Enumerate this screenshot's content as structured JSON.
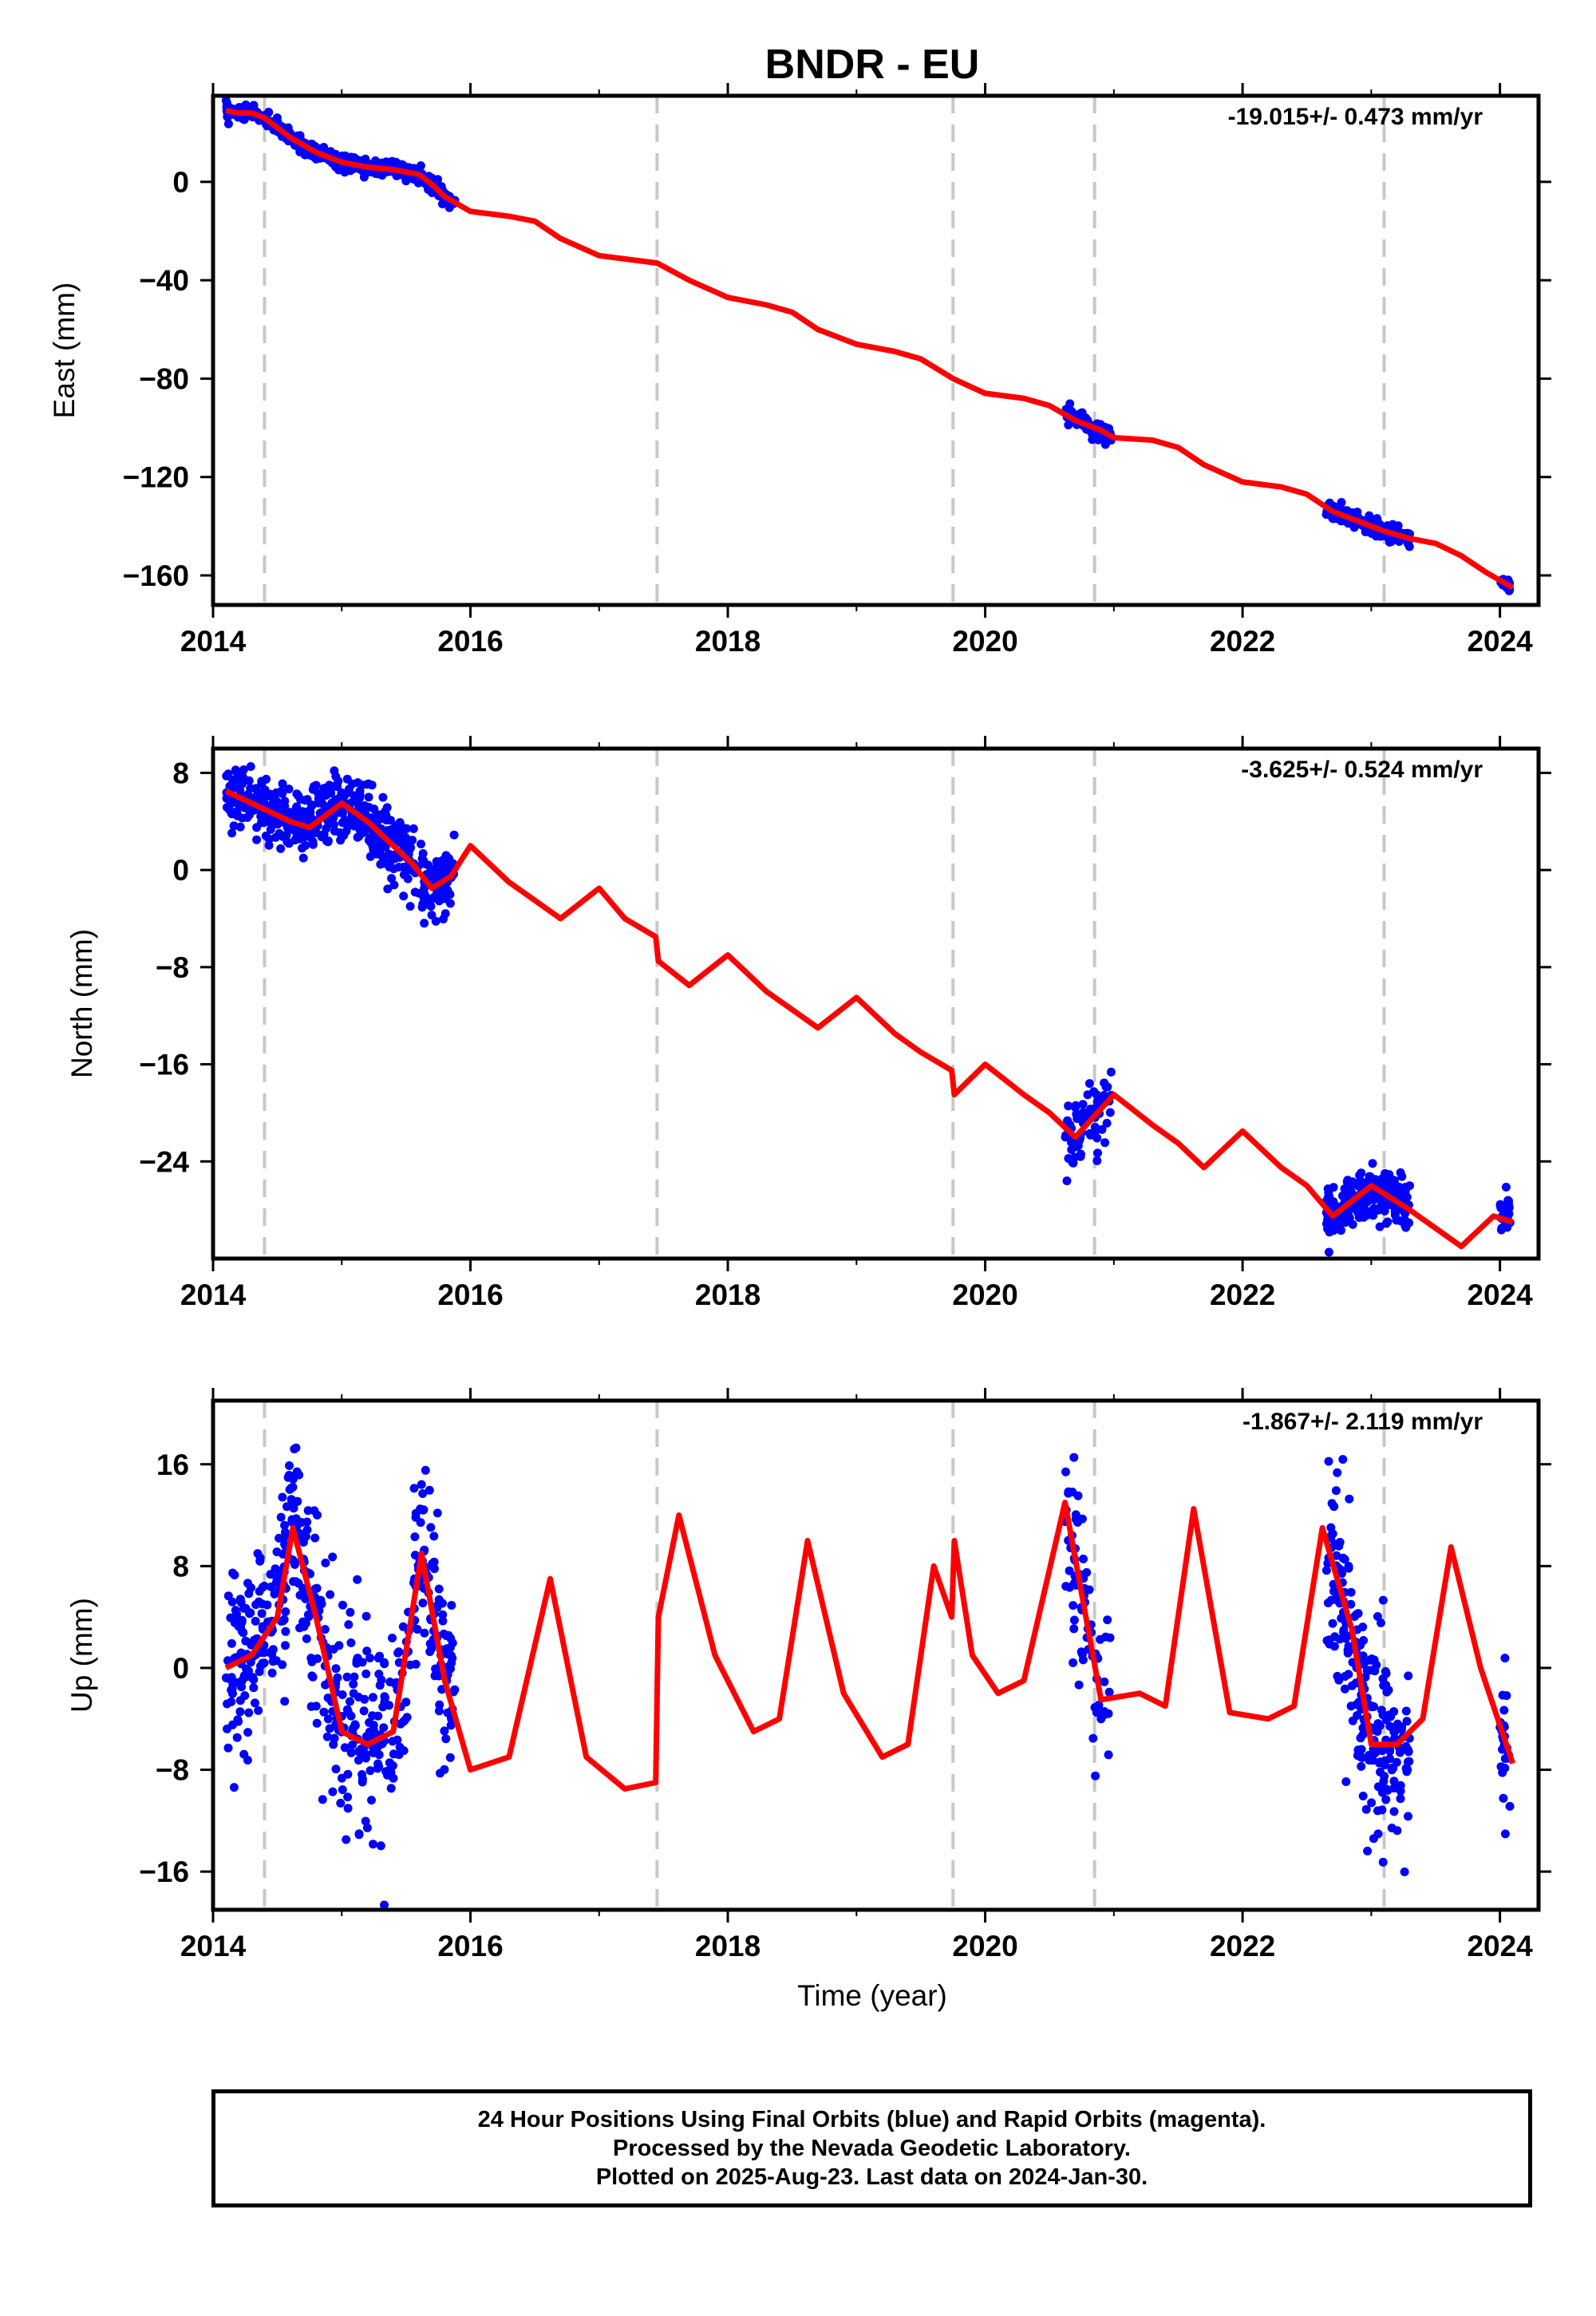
{
  "figure": {
    "title": "BNDR - EU",
    "xlabel": "Time (year)",
    "footer": [
      "24 Hour Positions Using Final Orbits (blue) and Rapid Orbits (magenta).",
      "Processed by the Nevada Geodetic Laboratory.",
      "Plotted on 2025-Aug-23. Last data on 2024-Jan-30."
    ],
    "colors": {
      "data": "#0000ff",
      "model": "#ff0000",
      "steps": "#c8c8c8",
      "frame": "#000000"
    }
  },
  "chart_data": [
    {
      "type": "scatter",
      "ylabel": "East (mm)",
      "rate": "-19.015+/- 0.473 mm/yr",
      "xlim": [
        2014.0,
        2024.3
      ],
      "ylim": [
        -172,
        35
      ],
      "xticks": [
        2014,
        2016,
        2018,
        2020,
        2022,
        2024
      ],
      "yticks": [
        0,
        -40,
        -80,
        -120,
        -160
      ],
      "step_lines": [
        2014.4,
        2017.45,
        2019.75,
        2020.85,
        2023.1
      ],
      "model": {
        "x": [
          2014.1,
          2014.2,
          2014.3,
          2014.4,
          2014.5,
          2014.6,
          2014.7,
          2014.8,
          2014.9,
          2015.0,
          2015.2,
          2015.4,
          2015.6,
          2015.7,
          2015.8,
          2016.0,
          2016.3,
          2016.5,
          2016.7,
          2017.0,
          2017.45,
          2017.7,
          2018.0,
          2018.3,
          2018.5,
          2018.7,
          2019.0,
          2019.3,
          2019.5,
          2019.75,
          2020.0,
          2020.3,
          2020.5,
          2020.7,
          2020.9,
          2021.0,
          2021.3,
          2021.5,
          2021.7,
          2022.0,
          2022.3,
          2022.5,
          2022.7,
          2022.9,
          2023.1,
          2023.3,
          2023.5,
          2023.7,
          2023.9,
          2024.1
        ],
        "y": [
          29,
          28,
          28,
          26,
          22,
          18,
          15,
          12,
          10,
          8,
          6,
          5,
          3,
          -1,
          -6,
          -12,
          -14,
          -16,
          -23,
          -30,
          -33,
          -40,
          -47,
          -50,
          -53,
          -60,
          -66,
          -69,
          -72,
          -80,
          -86,
          -88,
          -91,
          -97,
          -101,
          -104,
          -105,
          -108,
          -115,
          -122,
          -124,
          -127,
          -134,
          -138,
          -142,
          -145,
          -147,
          -152,
          -159,
          -165
        ]
      },
      "segments": [
        {
          "x_start": 2014.1,
          "x_end": 2015.88,
          "n": 520,
          "noise": 1.5
        },
        {
          "x_start": 2020.62,
          "x_end": 2020.98,
          "n": 70,
          "noise": 1.8
        },
        {
          "x_start": 2022.65,
          "x_end": 2023.3,
          "n": 230,
          "noise": 1.6
        },
        {
          "x_start": 2024.0,
          "x_end": 2024.08,
          "n": 25,
          "noise": 1.2
        }
      ]
    },
    {
      "type": "scatter",
      "ylabel": "North (mm)",
      "rate": "-3.625+/- 0.524 mm/yr",
      "xlim": [
        2014.0,
        2024.3
      ],
      "ylim": [
        -32,
        10
      ],
      "xticks": [
        2014,
        2016,
        2018,
        2020,
        2022,
        2024
      ],
      "yticks": [
        8,
        0,
        -8,
        -16,
        -24
      ],
      "step_lines": [
        2014.4,
        2017.45,
        2019.75,
        2020.85,
        2023.1
      ],
      "model": {
        "x": [
          2014.1,
          2014.4,
          2014.6,
          2014.75,
          2015.0,
          2015.2,
          2015.4,
          2015.55,
          2015.7,
          2015.85,
          2016.0,
          2016.3,
          2016.5,
          2016.7,
          2017.0,
          2017.2,
          2017.44,
          2017.46,
          2017.7,
          2018.0,
          2018.3,
          2018.5,
          2018.7,
          2019.0,
          2019.3,
          2019.5,
          2019.74,
          2019.76,
          2020.0,
          2020.3,
          2020.5,
          2020.7,
          2021.0,
          2021.3,
          2021.5,
          2021.7,
          2022.0,
          2022.3,
          2022.5,
          2022.7,
          2023.0,
          2023.3,
          2023.5,
          2023.7,
          2023.95,
          2024.1
        ],
        "y": [
          6.5,
          5,
          4,
          3.5,
          5.5,
          4,
          2,
          0.5,
          -1.5,
          -0.5,
          2,
          -1,
          -2.5,
          -4,
          -1.5,
          -4,
          -5.5,
          -7.5,
          -9.5,
          -7,
          -10,
          -11.5,
          -13,
          -10.5,
          -13.5,
          -15,
          -16.5,
          -18.5,
          -16,
          -18.5,
          -20,
          -22,
          -18.5,
          -21,
          -22.5,
          -24.5,
          -21.5,
          -24.5,
          -26,
          -28.5,
          -26,
          -28,
          -29.5,
          -31,
          -28.5,
          -29
        ]
      },
      "segments": [
        {
          "x_start": 2014.1,
          "x_end": 2015.88,
          "n": 520,
          "noise": 1.4
        },
        {
          "x_start": 2020.62,
          "x_end": 2020.98,
          "n": 70,
          "noise": 1.5
        },
        {
          "x_start": 2022.65,
          "x_end": 2023.3,
          "n": 230,
          "noise": 1.0
        },
        {
          "x_start": 2024.0,
          "x_end": 2024.08,
          "n": 25,
          "noise": 1.0
        }
      ]
    },
    {
      "type": "scatter",
      "ylabel": "Up (mm)",
      "rate": "-1.867+/- 2.119 mm/yr",
      "xlim": [
        2014.0,
        2024.3
      ],
      "ylim": [
        -19,
        21
      ],
      "xticks": [
        2014,
        2016,
        2018,
        2020,
        2022,
        2024
      ],
      "yticks": [
        16,
        8,
        0,
        -8,
        -16
      ],
      "step_lines": [
        2014.4,
        2017.45,
        2019.75,
        2020.85,
        2023.1
      ],
      "model": {
        "x": [
          2014.1,
          2014.3,
          2014.5,
          2014.62,
          2014.8,
          2015.0,
          2015.2,
          2015.4,
          2015.62,
          2015.8,
          2016.0,
          2016.3,
          2016.62,
          2016.9,
          2017.2,
          2017.44,
          2017.46,
          2017.62,
          2017.9,
          2018.2,
          2018.4,
          2018.62,
          2018.9,
          2019.2,
          2019.4,
          2019.6,
          2019.74,
          2019.76,
          2019.9,
          2020.1,
          2020.3,
          2020.62,
          2020.9,
          2021.2,
          2021.4,
          2021.62,
          2021.9,
          2022.2,
          2022.4,
          2022.62,
          2022.85,
          2023.0,
          2023.2,
          2023.4,
          2023.62,
          2023.85,
          2024.1
        ],
        "y": [
          0,
          1,
          4,
          11,
          4,
          -5,
          -6,
          -5,
          9,
          -1,
          -8,
          -7,
          7,
          -7,
          -9.5,
          -9,
          4,
          12,
          1,
          -5,
          -4,
          10,
          -2,
          -7,
          -6,
          8,
          4,
          10,
          1,
          -2,
          -1,
          13,
          -2.5,
          -2,
          -3,
          12.5,
          -3.5,
          -4,
          -3,
          11,
          3,
          -6,
          -6,
          -4,
          9.5,
          0,
          -7.5
        ]
      },
      "segments": [
        {
          "x_start": 2014.1,
          "x_end": 2015.88,
          "n": 520,
          "noise": 4.0
        },
        {
          "x_start": 2020.62,
          "x_end": 2020.98,
          "n": 70,
          "noise": 3.5
        },
        {
          "x_start": 2022.65,
          "x_end": 2023.3,
          "n": 230,
          "noise": 4.0
        },
        {
          "x_start": 2024.0,
          "x_end": 2024.08,
          "n": 25,
          "noise": 3.5
        }
      ]
    }
  ]
}
